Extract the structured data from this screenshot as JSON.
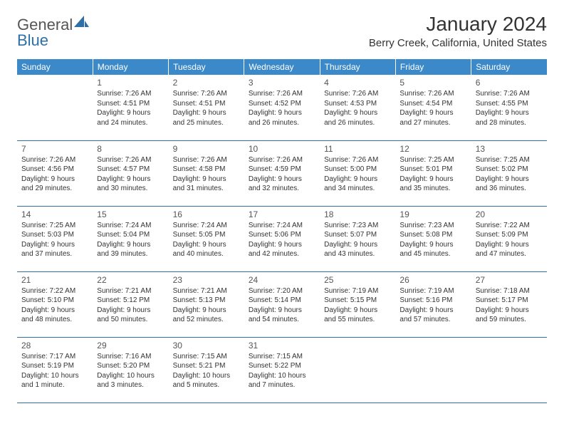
{
  "logo": {
    "text1": "General",
    "text2": "Blue",
    "shape_color": "#2f6fa8"
  },
  "title": "January 2024",
  "location": "Berry Creek, California, United States",
  "colors": {
    "header_bg": "#3b89c9",
    "border": "#2f6fa8",
    "text": "#333333"
  },
  "day_headers": [
    "Sunday",
    "Monday",
    "Tuesday",
    "Wednesday",
    "Thursday",
    "Friday",
    "Saturday"
  ],
  "weeks": [
    [
      null,
      {
        "n": "1",
        "sr": "7:26 AM",
        "ss": "4:51 PM",
        "dl": "9 hours and 24 minutes."
      },
      {
        "n": "2",
        "sr": "7:26 AM",
        "ss": "4:51 PM",
        "dl": "9 hours and 25 minutes."
      },
      {
        "n": "3",
        "sr": "7:26 AM",
        "ss": "4:52 PM",
        "dl": "9 hours and 26 minutes."
      },
      {
        "n": "4",
        "sr": "7:26 AM",
        "ss": "4:53 PM",
        "dl": "9 hours and 26 minutes."
      },
      {
        "n": "5",
        "sr": "7:26 AM",
        "ss": "4:54 PM",
        "dl": "9 hours and 27 minutes."
      },
      {
        "n": "6",
        "sr": "7:26 AM",
        "ss": "4:55 PM",
        "dl": "9 hours and 28 minutes."
      }
    ],
    [
      {
        "n": "7",
        "sr": "7:26 AM",
        "ss": "4:56 PM",
        "dl": "9 hours and 29 minutes."
      },
      {
        "n": "8",
        "sr": "7:26 AM",
        "ss": "4:57 PM",
        "dl": "9 hours and 30 minutes."
      },
      {
        "n": "9",
        "sr": "7:26 AM",
        "ss": "4:58 PM",
        "dl": "9 hours and 31 minutes."
      },
      {
        "n": "10",
        "sr": "7:26 AM",
        "ss": "4:59 PM",
        "dl": "9 hours and 32 minutes."
      },
      {
        "n": "11",
        "sr": "7:26 AM",
        "ss": "5:00 PM",
        "dl": "9 hours and 34 minutes."
      },
      {
        "n": "12",
        "sr": "7:25 AM",
        "ss": "5:01 PM",
        "dl": "9 hours and 35 minutes."
      },
      {
        "n": "13",
        "sr": "7:25 AM",
        "ss": "5:02 PM",
        "dl": "9 hours and 36 minutes."
      }
    ],
    [
      {
        "n": "14",
        "sr": "7:25 AM",
        "ss": "5:03 PM",
        "dl": "9 hours and 37 minutes."
      },
      {
        "n": "15",
        "sr": "7:24 AM",
        "ss": "5:04 PM",
        "dl": "9 hours and 39 minutes."
      },
      {
        "n": "16",
        "sr": "7:24 AM",
        "ss": "5:05 PM",
        "dl": "9 hours and 40 minutes."
      },
      {
        "n": "17",
        "sr": "7:24 AM",
        "ss": "5:06 PM",
        "dl": "9 hours and 42 minutes."
      },
      {
        "n": "18",
        "sr": "7:23 AM",
        "ss": "5:07 PM",
        "dl": "9 hours and 43 minutes."
      },
      {
        "n": "19",
        "sr": "7:23 AM",
        "ss": "5:08 PM",
        "dl": "9 hours and 45 minutes."
      },
      {
        "n": "20",
        "sr": "7:22 AM",
        "ss": "5:09 PM",
        "dl": "9 hours and 47 minutes."
      }
    ],
    [
      {
        "n": "21",
        "sr": "7:22 AM",
        "ss": "5:10 PM",
        "dl": "9 hours and 48 minutes."
      },
      {
        "n": "22",
        "sr": "7:21 AM",
        "ss": "5:12 PM",
        "dl": "9 hours and 50 minutes."
      },
      {
        "n": "23",
        "sr": "7:21 AM",
        "ss": "5:13 PM",
        "dl": "9 hours and 52 minutes."
      },
      {
        "n": "24",
        "sr": "7:20 AM",
        "ss": "5:14 PM",
        "dl": "9 hours and 54 minutes."
      },
      {
        "n": "25",
        "sr": "7:19 AM",
        "ss": "5:15 PM",
        "dl": "9 hours and 55 minutes."
      },
      {
        "n": "26",
        "sr": "7:19 AM",
        "ss": "5:16 PM",
        "dl": "9 hours and 57 minutes."
      },
      {
        "n": "27",
        "sr": "7:18 AM",
        "ss": "5:17 PM",
        "dl": "9 hours and 59 minutes."
      }
    ],
    [
      {
        "n": "28",
        "sr": "7:17 AM",
        "ss": "5:19 PM",
        "dl": "10 hours and 1 minute."
      },
      {
        "n": "29",
        "sr": "7:16 AM",
        "ss": "5:20 PM",
        "dl": "10 hours and 3 minutes."
      },
      {
        "n": "30",
        "sr": "7:15 AM",
        "ss": "5:21 PM",
        "dl": "10 hours and 5 minutes."
      },
      {
        "n": "31",
        "sr": "7:15 AM",
        "ss": "5:22 PM",
        "dl": "10 hours and 7 minutes."
      },
      null,
      null,
      null
    ]
  ],
  "labels": {
    "sunrise": "Sunrise:",
    "sunset": "Sunset:",
    "daylight": "Daylight:"
  }
}
